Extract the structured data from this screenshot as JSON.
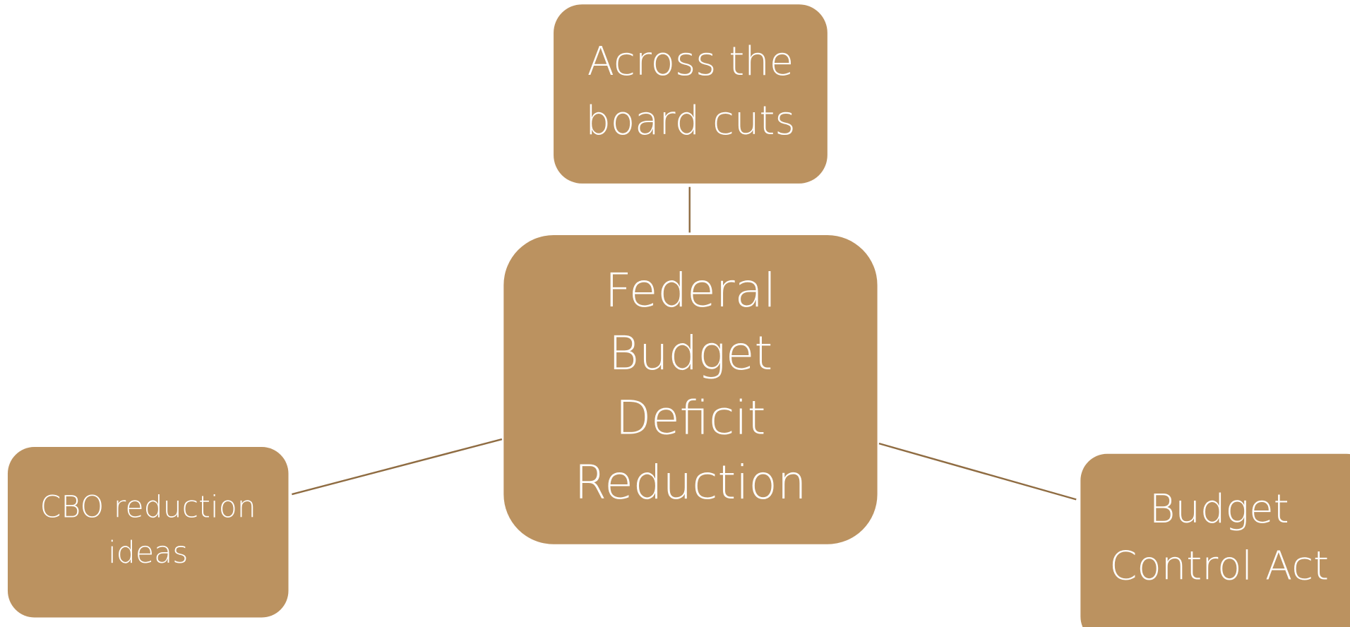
{
  "nodes": [
    {
      "lines": [
        "Federal",
        "Budget",
        "Deficit",
        "Reduction"
      ]
    },
    {
      "lines": [
        "Across the",
        "board cuts"
      ]
    },
    {
      "lines": [
        "CBO reduction",
        "ideas"
      ]
    },
    {
      "lines": [
        "Budget",
        "Control Act"
      ]
    }
  ]
}
